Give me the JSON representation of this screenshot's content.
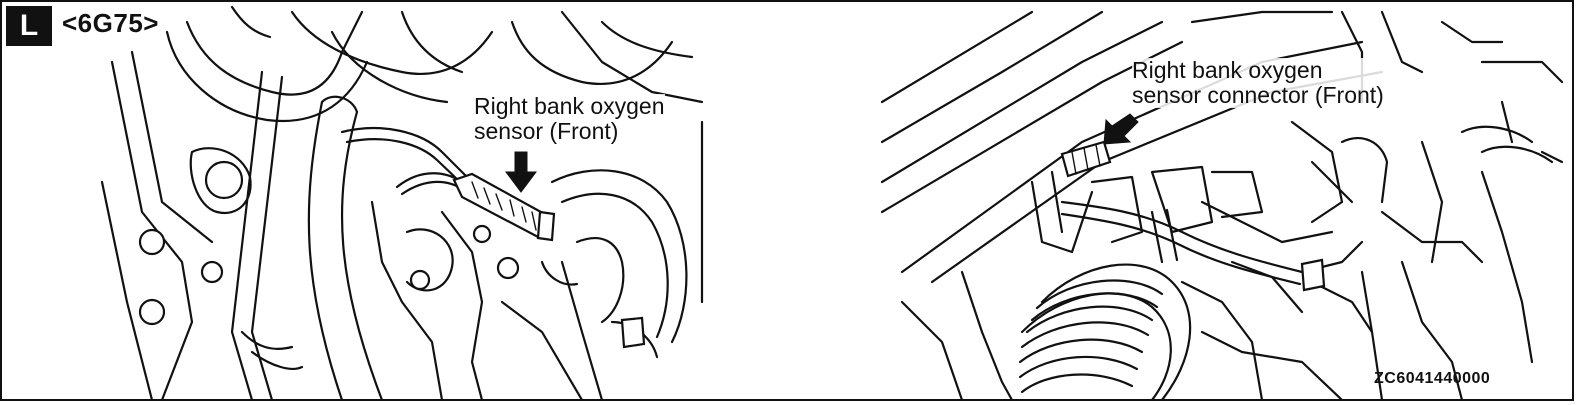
{
  "badge": {
    "label": "L"
  },
  "engine_code": "<6G75>",
  "left_panel": {
    "callout_line1": "Right bank oxygen",
    "callout_line2": "sensor (Front)"
  },
  "right_panel": {
    "callout_line1": "Right bank oxygen",
    "callout_line2": "sensor connector (Front)"
  },
  "figure_code": "ZC6041440000",
  "colors": {
    "ink": "#111111",
    "paper": "#ffffff"
  }
}
